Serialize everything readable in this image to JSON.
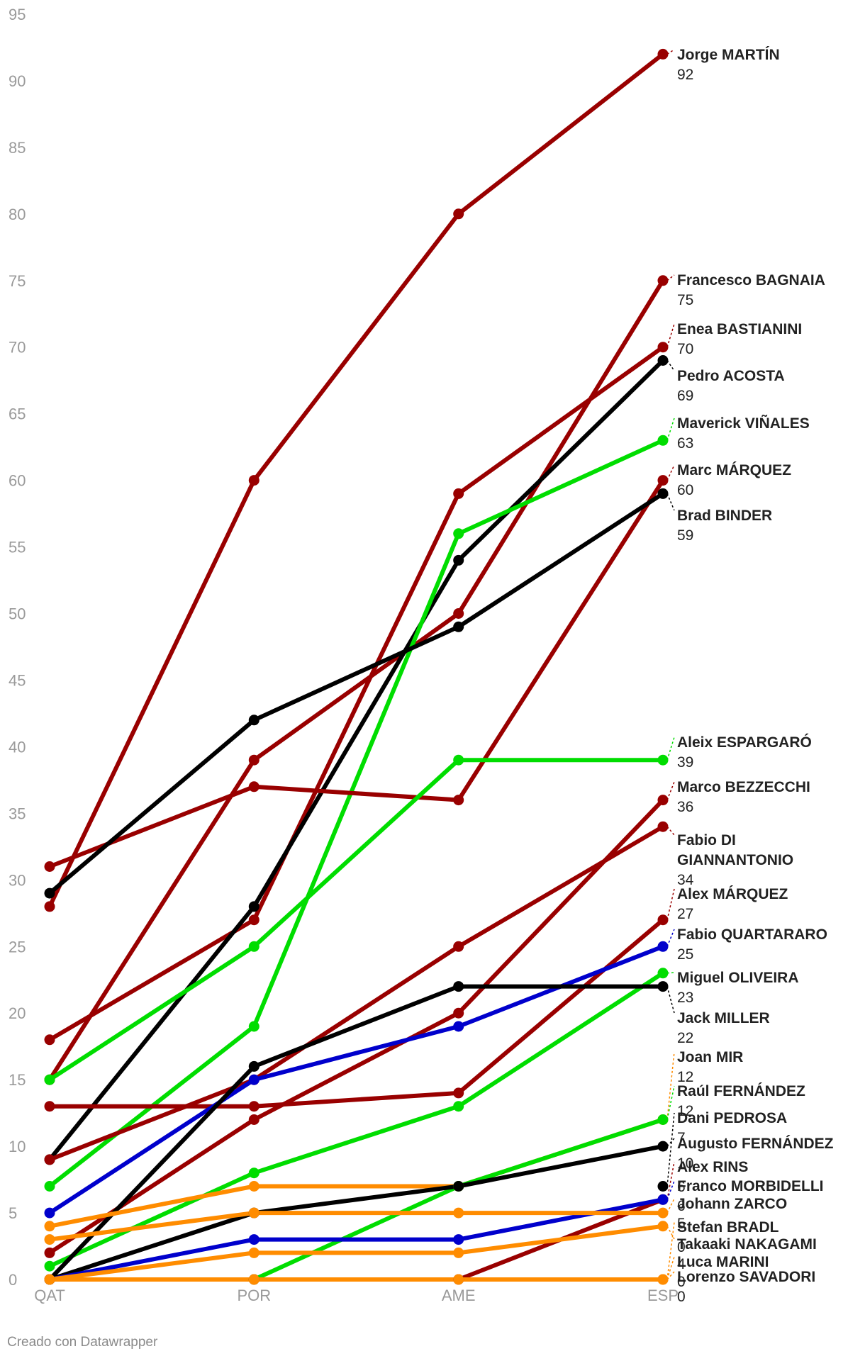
{
  "footer": "Creado con Datawrapper",
  "chart_data": {
    "type": "line",
    "title": "",
    "xlabel": "",
    "ylabel": "",
    "categories": [
      "QAT",
      "POR",
      "AME",
      "ESP"
    ],
    "ylim": [
      0,
      95
    ],
    "yticks": [
      0,
      5,
      10,
      15,
      20,
      25,
      30,
      35,
      40,
      45,
      50,
      55,
      60,
      65,
      70,
      75,
      80,
      85,
      90,
      95
    ],
    "grid": false,
    "legend": "direct-labels-right",
    "series": [
      {
        "name": "Jorge MARTÍN",
        "color": "#990000",
        "values": [
          28,
          60,
          80,
          92
        ]
      },
      {
        "name": "Francesco BAGNAIA",
        "color": "#990000",
        "values": [
          15,
          39,
          50,
          75
        ]
      },
      {
        "name": "Enea BASTIANINI",
        "color": "#990000",
        "values": [
          18,
          27,
          59,
          70
        ]
      },
      {
        "name": "Pedro ACOSTA",
        "color": "#000000",
        "values": [
          9,
          28,
          54,
          69
        ]
      },
      {
        "name": "Maverick VIÑALES",
        "color": "#00dd00",
        "values": [
          7,
          19,
          56,
          63
        ]
      },
      {
        "name": "Marc MÁRQUEZ",
        "color": "#990000",
        "values": [
          31,
          37,
          36,
          60
        ]
      },
      {
        "name": "Brad BINDER",
        "color": "#000000",
        "values": [
          29,
          42,
          49,
          59
        ]
      },
      {
        "name": "Aleix ESPARGARÓ",
        "color": "#00dd00",
        "values": [
          15,
          25,
          39,
          39
        ]
      },
      {
        "name": "Marco BEZZECCHI",
        "color": "#990000",
        "values": [
          2,
          12,
          20,
          36
        ]
      },
      {
        "name": "Fabio DI GIANNANTONIO",
        "color": "#990000",
        "values": [
          9,
          15,
          25,
          34
        ]
      },
      {
        "name": "Alex MÁRQUEZ",
        "color": "#990000",
        "values": [
          13,
          13,
          14,
          27
        ]
      },
      {
        "name": "Fabio QUARTARARO",
        "color": "#0000cc",
        "values": [
          5,
          15,
          19,
          25
        ]
      },
      {
        "name": "Miguel OLIVEIRA",
        "color": "#00dd00",
        "values": [
          1,
          8,
          13,
          23
        ]
      },
      {
        "name": "Jack MILLER",
        "color": "#000000",
        "values": [
          0,
          16,
          22,
          22
        ]
      },
      {
        "name": "Joan MIR",
        "color": "#ff8c00",
        "values": [
          4,
          7,
          7,
          12
        ]
      },
      {
        "name": "Raúl FERNÁNDEZ",
        "color": "#00dd00",
        "values": [
          0,
          0,
          7,
          12
        ]
      },
      {
        "name": "Dani PEDROSA",
        "color": "#000000",
        "values": [
          null,
          null,
          null,
          7
        ]
      },
      {
        "name": "Augusto FERNÁNDEZ",
        "color": "#000000",
        "values": [
          0,
          5,
          7,
          10
        ]
      },
      {
        "name": "Alex RINS",
        "color": "#990000",
        "values": [
          0,
          0,
          0,
          6
        ]
      },
      {
        "name": "Franco MORBIDELLI",
        "color": "#0000cc",
        "values": [
          0,
          3,
          3,
          6
        ]
      },
      {
        "name": "Johann ZARCO",
        "color": "#ff8c00",
        "values": [
          3,
          5,
          5,
          5
        ]
      },
      {
        "name": "Stefan BRADL",
        "color": "#ff8c00",
        "values": [
          null,
          null,
          null,
          0
        ]
      },
      {
        "name": "Takaaki NAKAGAMI",
        "color": "#ff8c00",
        "values": [
          0,
          2,
          2,
          4
        ]
      },
      {
        "name": "Luca MARINI",
        "color": "#ff8c00",
        "values": [
          0,
          0,
          0,
          0
        ]
      },
      {
        "name": "Lorenzo SAVADORI",
        "color": "#ff8c00",
        "values": [
          null,
          null,
          null,
          0
        ]
      }
    ],
    "direct_labels": [
      {
        "line1": "Jorge MARTÍN",
        "value": "92"
      },
      {
        "line1": "Francesco BAGNAIA",
        "value": "75"
      },
      {
        "line1": "Enea BASTIANINI",
        "value": "70"
      },
      {
        "line1": "Pedro ACOSTA",
        "value": "69"
      },
      {
        "line1": "Maverick VIÑALES",
        "value": "63"
      },
      {
        "line1": "Marc MÁRQUEZ",
        "value": "60"
      },
      {
        "line1": "Brad BINDER",
        "value": "59"
      },
      {
        "line1": "Aleix ESPARGARÓ",
        "value": "39"
      },
      {
        "line1": "Marco BEZZECCHI",
        "value": "36"
      },
      {
        "line1": "Fabio DI",
        "line2": "GIANNANTONIO",
        "value": "34"
      },
      {
        "line1": "Alex MÁRQUEZ",
        "value": "27"
      },
      {
        "line1": "Fabio QUARTARARO",
        "value": "25"
      },
      {
        "line1": "Miguel OLIVEIRA",
        "value": "23"
      },
      {
        "line1": "Jack MILLER",
        "value": "22"
      },
      {
        "line1": "Joan MIR",
        "value": "12"
      },
      {
        "line1": "Raúl FERNÁNDEZ",
        "value": "12"
      },
      {
        "line1": "Dani PEDROSA",
        "value": "7"
      },
      {
        "line1": "Augusto FERNÁNDEZ",
        "value": "10"
      },
      {
        "line1": "Alex RINS",
        "value": "6"
      },
      {
        "line1": "Franco MORBIDELLI",
        "value": "6"
      },
      {
        "line1": "Johann ZARCO",
        "value": "5"
      },
      {
        "line1": "Stefan BRADL",
        "value": "0"
      },
      {
        "line1": "Takaaki NAKAGAMI",
        "value": "4"
      },
      {
        "line1": "Luca MARINI",
        "value": "0"
      },
      {
        "line1": "Lorenzo SAVADORI",
        "value": "0"
      }
    ]
  }
}
